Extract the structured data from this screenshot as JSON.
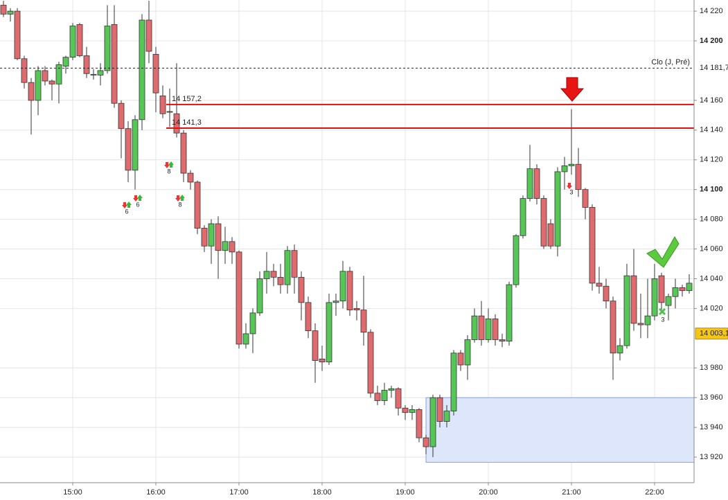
{
  "chart_data": {
    "type": "candlestick",
    "x": [
      850,
      855,
      860,
      865,
      870,
      875,
      880,
      885,
      890,
      895,
      900,
      905,
      910,
      915,
      920,
      925,
      930,
      935,
      940,
      945,
      950,
      955,
      960,
      965,
      970,
      975,
      980,
      985,
      990,
      995,
      1000,
      1005,
      1010,
      1015,
      1020,
      1025,
      1030,
      1035,
      1040,
      1045,
      1050,
      1055,
      1060,
      1065,
      1070,
      1075,
      1080,
      1085,
      1090,
      1095,
      1100,
      1105,
      1110,
      1115,
      1120,
      1125,
      1130,
      1135,
      1140,
      1145,
      1150,
      1155,
      1160,
      1165,
      1170,
      1175,
      1180,
      1185,
      1190,
      1195,
      1200,
      1205,
      1210,
      1215,
      1220,
      1225,
      1230,
      1235,
      1240,
      1245,
      1250,
      1255,
      1260,
      1265,
      1270,
      1275,
      1280,
      1285,
      1290,
      1295,
      1300,
      1305,
      1310,
      1315,
      1320,
      1325,
      1330,
      1335,
      1340,
      1345
    ],
    "open": [
      14224,
      14218,
      14220,
      14188,
      14172,
      14160,
      14180,
      14173,
      14171,
      14183,
      14189,
      14211,
      14190,
      14177,
      14177,
      14180,
      14211,
      14158,
      14141,
      14113,
      14147,
      14214,
      14191,
      14163,
      14152,
      14151,
      14138,
      14111,
      14105,
      14074,
      14062,
      14077,
      14059,
      14065,
      14058,
      13996,
      14003,
      14017,
      14040,
      14045,
      14041,
      14036,
      14059,
      14041,
      14024,
      14005,
      13986,
      13984,
      14024,
      14025,
      14045,
      14020,
      14019,
      14004,
      13963,
      13958,
      13965,
      13966,
      13953,
      13950,
      13952,
      13933,
      13927,
      13960,
      13944,
      13951,
      13990,
      13982,
      13999,
      14015,
      13999,
      14013,
      13999,
      13998,
      14036,
      14069,
      14094,
      14114,
      14094,
      14077,
      14062,
      14112,
      14116,
      14117,
      14100,
      14088,
      14037,
      14035,
      14025,
      13990,
      13995,
      14042,
      14010,
      14009,
      14015,
      14042,
      14022,
      14028,
      14034,
      14032
    ],
    "high": [
      14227,
      14222,
      14222,
      14190,
      14175,
      14183,
      14183,
      14174,
      14186,
      14190,
      14212,
      14212,
      14196,
      14181,
      14185,
      14224,
      14224,
      14160,
      14146,
      14150,
      14218,
      14227,
      14196,
      14170,
      14168,
      14185,
      14140,
      14113,
      14106,
      14076,
      14080,
      14082,
      14075,
      14068,
      14059,
      14010,
      14020,
      14045,
      14058,
      14050,
      14050,
      14062,
      14063,
      14045,
      14028,
      14010,
      13995,
      14030,
      14030,
      14052,
      14048,
      14025,
      14042,
      14006,
      13968,
      13970,
      13968,
      13967,
      13955,
      13955,
      13953,
      13935,
      13962,
      13962,
      13955,
      13992,
      13992,
      14002,
      14020,
      14025,
      14020,
      14016,
      14003,
      14038,
      14070,
      14096,
      14130,
      14117,
      14096,
      14080,
      14115,
      14122,
      14154,
      14128,
      14101,
      14090,
      14048,
      14040,
      14028,
      14000,
      14050,
      14060,
      14030,
      14040,
      14050,
      14044,
      14030,
      14040,
      14036,
      14043
    ],
    "low": [
      14216,
      14213,
      14187,
      14168,
      14137,
      14150,
      14170,
      14160,
      14158,
      14178,
      14187,
      14189,
      14175,
      14174,
      14170,
      14178,
      14155,
      14121,
      14105,
      14100,
      14140,
      14185,
      14152,
      14148,
      14142,
      14135,
      14105,
      14100,
      14070,
      14058,
      14050,
      14040,
      14050,
      14050,
      13993,
      13993,
      13990,
      14015,
      14030,
      14035,
      14030,
      14030,
      14030,
      14012,
      14000,
      13970,
      13978,
      13982,
      14015,
      14020,
      14015,
      14012,
      13995,
      13960,
      13955,
      13955,
      13960,
      13948,
      13945,
      13945,
      13930,
      13922,
      13920,
      13940,
      13940,
      13948,
      13978,
      13972,
      13997,
      13995,
      13997,
      13995,
      13994,
      13995,
      14034,
      14067,
      14092,
      14090,
      14060,
      14060,
      14055,
      14100,
      14110,
      14095,
      14080,
      14032,
      14030,
      14020,
      13972,
      13985,
      13993,
      14005,
      14000,
      14000,
      14012,
      14018,
      14012,
      14020,
      14028,
      14030
    ],
    "close": [
      14218,
      14220,
      14188,
      14172,
      14160,
      14180,
      14173,
      14171,
      14184,
      14189,
      14210,
      14190,
      14178,
      14177.5,
      14180,
      14210,
      14158,
      14141,
      14113,
      14147,
      14214,
      14193,
      14165,
      14151,
      14152.5,
      14138,
      14111,
      14105,
      14074,
      14062,
      14077,
      14059,
      14065,
      14058,
      13996,
      14003,
      14017,
      14040,
      14045,
      14041,
      14036,
      14059,
      14041,
      14024,
      14005,
      13985,
      13984,
      14024,
      14025,
      14045,
      14019,
      14019,
      14004,
      13963,
      13958,
      13965,
      13966,
      13953,
      13950,
      13952,
      13933,
      13927,
      13960,
      13944,
      13951,
      13990,
      13982,
      13999,
      14015,
      13999,
      14013,
      13999,
      13998,
      14036,
      14069,
      14094,
      14114,
      14094,
      14062,
      14062,
      14112,
      14116,
      14117,
      14100,
      14088,
      14037,
      14035,
      14025,
      13990,
      13995,
      14042,
      14010,
      14009,
      14015,
      14040,
      14024,
      14028,
      14034,
      14032,
      14037
    ],
    "up_color": "#56c656",
    "down_color": "#e06b6e",
    "xlim": [
      847.5,
      1348.5
    ],
    "xticks": [
      {
        "value": 900,
        "label": "15:00"
      },
      {
        "value": 960,
        "label": "16:00"
      },
      {
        "value": 1020,
        "label": "17:00"
      },
      {
        "value": 1080,
        "label": "18:00"
      },
      {
        "value": 1140,
        "label": "19:00"
      },
      {
        "value": 1200,
        "label": "20:00"
      },
      {
        "value": 1260,
        "label": "21:00"
      },
      {
        "value": 1320,
        "label": "22:00"
      }
    ],
    "ylim": [
      13902.8,
      14227.5
    ],
    "yticks": [
      {
        "value": 14220,
        "label": "14 220"
      },
      {
        "value": 14200,
        "label": "14 200"
      },
      {
        "value": 14160,
        "label": "14 160"
      },
      {
        "value": 14140,
        "label": "14 140"
      },
      {
        "value": 14120,
        "label": "14 120"
      },
      {
        "value": 14100,
        "label": "14 100"
      },
      {
        "value": 14080,
        "label": "14 080"
      },
      {
        "value": 14060,
        "label": "14 060"
      },
      {
        "value": 14040,
        "label": "14 040"
      },
      {
        "value": 14020,
        "label": "14 020"
      },
      {
        "value": 13980,
        "label": "13 980"
      },
      {
        "value": 13960,
        "label": "13 960"
      },
      {
        "value": 13940,
        "label": "13 940"
      },
      {
        "value": 13920,
        "label": "13 920"
      }
    ],
    "grid": true,
    "levels": [
      {
        "value": 14157.2,
        "label": "14 157,2",
        "color": "#e01010"
      },
      {
        "value": 14141.3,
        "label": "14 141,3",
        "color": "#e01010"
      }
    ],
    "previous_close": {
      "name": "Clo (J, Pré)",
      "value": 14181.7,
      "label": "14 181,7"
    },
    "last_price": {
      "value": 14003.1,
      "label": "14 003,1",
      "color": "#f5c518"
    },
    "zone": {
      "x_start": 1155,
      "ylim": [
        13916.5,
        13960
      ],
      "color": "#dde6fb"
    },
    "annotations": [
      "6",
      "6",
      "8",
      "8",
      "3",
      "3"
    ]
  }
}
